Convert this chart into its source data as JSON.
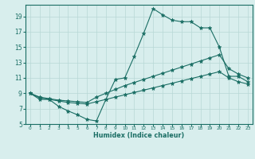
{
  "xlabel": "Humidex (Indice chaleur)",
  "bg_color": "#d8eeed",
  "line_color": "#1a6e64",
  "grid_color": "#b8d8d5",
  "xlim": [
    -0.5,
    23.5
  ],
  "ylim": [
    5,
    20.5
  ],
  "xticks": [
    0,
    1,
    2,
    3,
    4,
    5,
    6,
    7,
    8,
    9,
    10,
    11,
    12,
    13,
    14,
    15,
    16,
    17,
    18,
    19,
    20,
    21,
    22,
    23
  ],
  "yticks": [
    5,
    7,
    9,
    11,
    13,
    15,
    17,
    19
  ],
  "curve1_x": [
    0,
    1,
    2,
    3,
    4,
    5,
    6,
    7,
    8,
    9,
    10,
    11,
    12,
    13,
    14,
    15,
    16,
    17,
    18,
    19,
    20,
    21,
    22,
    23
  ],
  "curve1_y": [
    9.0,
    8.2,
    8.2,
    7.3,
    6.7,
    6.2,
    5.6,
    5.4,
    8.2,
    10.8,
    11.0,
    13.8,
    16.8,
    20.0,
    19.2,
    18.5,
    18.3,
    18.3,
    17.5,
    17.5,
    15.0,
    11.2,
    11.2,
    10.5
  ],
  "curve2_x": [
    0,
    1,
    2,
    3,
    4,
    5,
    6,
    7,
    8,
    9,
    10,
    11,
    12,
    13,
    14,
    15,
    16,
    17,
    18,
    19,
    20,
    21,
    22,
    23
  ],
  "curve2_y": [
    9.0,
    8.5,
    8.3,
    8.1,
    8.0,
    7.9,
    7.8,
    8.5,
    9.0,
    9.5,
    10.0,
    10.4,
    10.8,
    11.2,
    11.6,
    12.0,
    12.4,
    12.8,
    13.2,
    13.6,
    14.0,
    12.2,
    11.5,
    11.0
  ],
  "curve3_x": [
    0,
    1,
    2,
    3,
    4,
    5,
    6,
    7,
    8,
    9,
    10,
    11,
    12,
    13,
    14,
    15,
    16,
    17,
    18,
    19,
    20,
    21,
    22,
    23
  ],
  "curve3_y": [
    9.0,
    8.4,
    8.2,
    8.0,
    7.8,
    7.7,
    7.6,
    7.9,
    8.2,
    8.5,
    8.8,
    9.1,
    9.4,
    9.7,
    10.0,
    10.3,
    10.6,
    10.9,
    11.2,
    11.5,
    11.8,
    11.0,
    10.5,
    10.2
  ]
}
